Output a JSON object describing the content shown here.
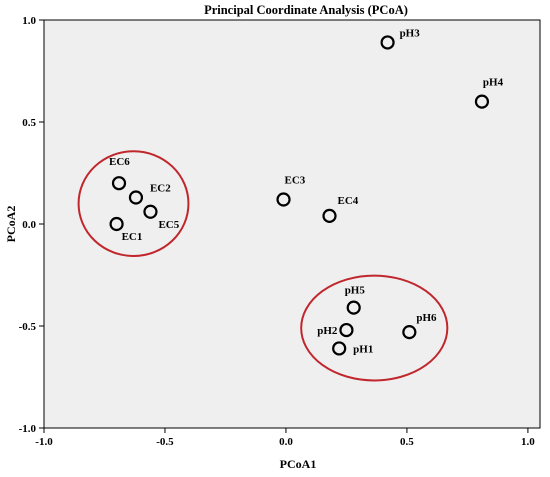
{
  "chart_data": {
    "type": "scatter",
    "title": "Principal Coordinate Analysis (PCoA)",
    "xlabel": "PCoA1",
    "ylabel": "PCoA2",
    "xlim": [
      -1.0,
      1.05
    ],
    "ylim": [
      -1.0,
      1.0
    ],
    "x_ticks": [
      -1.0,
      -0.5,
      0.0,
      0.5,
      1.0
    ],
    "x_tick_labels": [
      "-1.0",
      "-0.5",
      "0.0",
      "0.5",
      "1.0"
    ],
    "y_ticks": [
      -1.0,
      -0.5,
      0.0,
      0.5,
      1.0
    ],
    "y_tick_labels": [
      "-1.0",
      "-0.5",
      "0.0",
      "0.5",
      "1.0"
    ],
    "grid": false,
    "background_color": "#efefef",
    "ellipse_color": "#c0272d",
    "points": [
      {
        "label": "EC6",
        "x": -0.69,
        "y": 0.2
      },
      {
        "label": "EC2",
        "x": -0.62,
        "y": 0.13
      },
      {
        "label": "EC5",
        "x": -0.56,
        "y": 0.06
      },
      {
        "label": "EC1",
        "x": -0.7,
        "y": 0.0
      },
      {
        "label": "EC3",
        "x": -0.01,
        "y": 0.12
      },
      {
        "label": "EC4",
        "x": 0.18,
        "y": 0.04
      },
      {
        "label": "pH3",
        "x": 0.42,
        "y": 0.89
      },
      {
        "label": "pH4",
        "x": 0.81,
        "y": 0.6
      },
      {
        "label": "pH5",
        "x": 0.28,
        "y": -0.41
      },
      {
        "label": "pH6",
        "x": 0.51,
        "y": -0.53
      },
      {
        "label": "pH2",
        "x": 0.25,
        "y": -0.52
      },
      {
        "label": "pH1",
        "x": 0.22,
        "y": -0.61
      }
    ],
    "groups": [
      {
        "members": [
          "EC1",
          "EC2",
          "EC5",
          "EC6"
        ]
      },
      {
        "members": [
          "pH1",
          "pH2",
          "pH5",
          "pH6"
        ]
      }
    ]
  }
}
